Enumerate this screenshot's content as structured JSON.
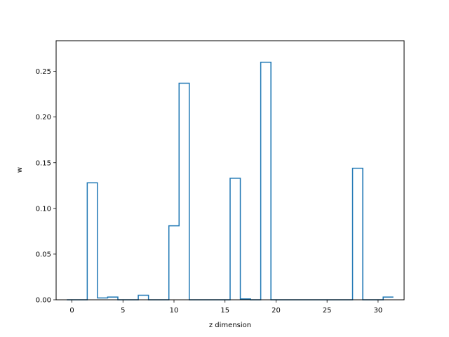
{
  "chart_data": {
    "type": "step",
    "xlabel": "z dimension",
    "ylabel": "w",
    "xlim": [
      -1.55,
      32.55
    ],
    "ylim": [
      0,
      0.2835
    ],
    "grid": false,
    "legend": "none",
    "series": [
      {
        "color": "#1f77b4",
        "x": [
          0,
          1,
          2,
          3,
          4,
          5,
          6,
          7,
          8,
          9,
          10,
          11,
          12,
          13,
          14,
          15,
          16,
          17,
          18,
          19,
          20,
          21,
          22,
          23,
          24,
          25,
          26,
          27,
          28,
          29,
          30,
          31
        ],
        "values": [
          0.0,
          0.0,
          0.128,
          0.002,
          0.003,
          0.0,
          0.0,
          0.005,
          0.0,
          0.0,
          0.081,
          0.237,
          0.0,
          0.0,
          0.0,
          0.0,
          0.133,
          0.001,
          0.0,
          0.26,
          0.0,
          0.0,
          0.0,
          0.0,
          0.0,
          0.0,
          0.0,
          0.0,
          0.144,
          0.0,
          0.0,
          0.003
        ]
      }
    ],
    "xticks": [
      "0",
      "5",
      "10",
      "15",
      "20",
      "25",
      "30"
    ],
    "xtick_values": [
      0,
      5,
      10,
      15,
      20,
      25,
      30
    ],
    "yticks": [
      "0.00",
      "0.05",
      "0.10",
      "0.15",
      "0.20",
      "0.25"
    ],
    "ytick_values": [
      0,
      0.05,
      0.1,
      0.15,
      0.2,
      0.25
    ]
  }
}
